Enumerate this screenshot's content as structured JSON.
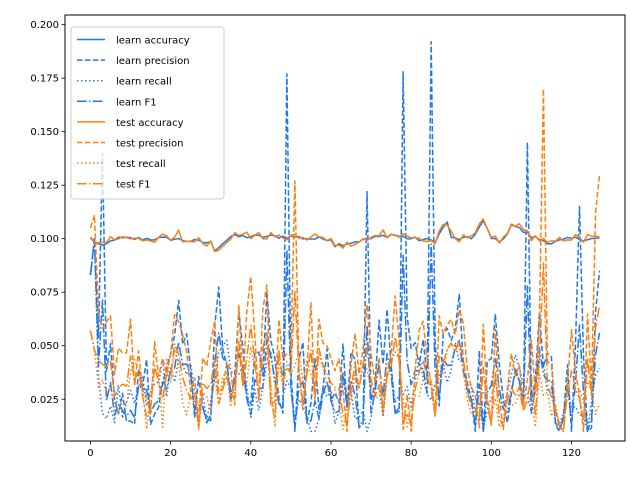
{
  "chart_data": {
    "type": "line",
    "title": "",
    "xlabel": "",
    "ylabel": "",
    "xlim": [
      -6.35,
      133.35
    ],
    "ylim": [
      0.0055,
      0.2045
    ],
    "xticks": [
      0,
      20,
      40,
      60,
      80,
      100,
      120
    ],
    "yticks": [
      0.025,
      0.05,
      0.075,
      0.1,
      0.125,
      0.15,
      0.175,
      0.2
    ],
    "xtick_labels": [
      "0",
      "20",
      "40",
      "60",
      "80",
      "100",
      "120"
    ],
    "ytick_labels": [
      "0.025",
      "0.050",
      "0.075",
      "0.100",
      "0.125",
      "0.150",
      "0.175",
      "0.200"
    ],
    "grid": false,
    "legend_position": "upper-left",
    "colors": {
      "learn": "#1f77e8",
      "test": "#ff7f0e"
    },
    "key_points": {
      "learn_accuracy": [
        [
          0,
          0.1
        ],
        [
          3,
          0.096
        ],
        [
          6,
          0.1
        ],
        [
          10,
          0.1
        ],
        [
          20,
          0.1
        ],
        [
          30,
          0.098
        ],
        [
          31,
          0.095
        ],
        [
          35,
          0.101
        ],
        [
          40,
          0.101
        ],
        [
          50,
          0.101
        ],
        [
          55,
          0.1
        ],
        [
          60,
          0.1
        ],
        [
          61,
          0.097
        ],
        [
          70,
          0.1
        ],
        [
          75,
          0.102
        ],
        [
          80,
          0.1
        ],
        [
          86,
          0.099
        ],
        [
          89,
          0.108
        ],
        [
          90,
          0.1
        ],
        [
          95,
          0.1
        ],
        [
          98,
          0.108
        ],
        [
          100,
          0.1
        ],
        [
          103,
          0.099
        ],
        [
          105,
          0.107
        ],
        [
          110,
          0.101
        ],
        [
          115,
          0.098
        ],
        [
          120,
          0.1
        ],
        [
          127,
          0.1
        ]
      ],
      "learn_precision_peaks": [
        [
          3,
          0.14
        ],
        [
          49,
          0.177
        ],
        [
          69,
          0.122
        ],
        [
          78,
          0.178
        ],
        [
          85,
          0.192
        ],
        [
          109,
          0.145
        ],
        [
          122,
          0.115
        ],
        [
          127,
          0.085
        ]
      ],
      "test_precision_peaks": [
        [
          0,
          0.105
        ],
        [
          1,
          0.111
        ],
        [
          51,
          0.127
        ],
        [
          113,
          0.17
        ],
        [
          126,
          0.112
        ],
        [
          127,
          0.13
        ]
      ],
      "test_recall_lows": [
        [
          14,
          0.011
        ],
        [
          18,
          0.012
        ],
        [
          27,
          0.011
        ],
        [
          46,
          0.012
        ],
        [
          63,
          0.011
        ],
        [
          102,
          0.012
        ],
        [
          111,
          0.012
        ]
      ]
    },
    "series": [
      {
        "name": "learn accuracy",
        "color": "#1f77e8",
        "style": "solid"
      },
      {
        "name": "learn precision",
        "color": "#1f77e8",
        "style": "dashed"
      },
      {
        "name": "learn recall",
        "color": "#1f77e8",
        "style": "dotted"
      },
      {
        "name": "learn F1",
        "color": "#1f77e8",
        "style": "dashdot"
      },
      {
        "name": "test accuracy",
        "color": "#ff7f0e",
        "style": "solid"
      },
      {
        "name": "test precision",
        "color": "#ff7f0e",
        "style": "dashed"
      },
      {
        "name": "test recall",
        "color": "#ff7f0e",
        "style": "dotted"
      },
      {
        "name": "test F1",
        "color": "#ff7f0e",
        "style": "dashdot"
      }
    ]
  }
}
